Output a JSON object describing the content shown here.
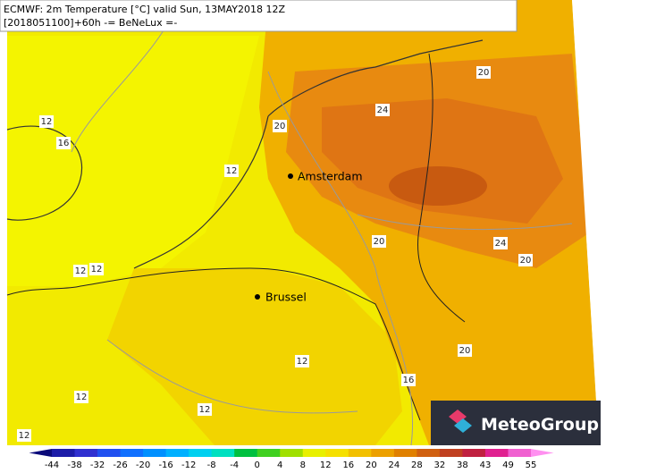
{
  "header": {
    "line1": "ECMWF: 2m Temperature [°C] valid Sun, 13MAY2018 12Z",
    "line2": "[2018051100]+60h -= BeNeLux =-"
  },
  "cities": [
    "Amsterdam",
    "Brussel"
  ],
  "contour_labels": [
    20,
    24,
    20,
    12,
    16,
    12,
    20,
    24,
    20,
    12,
    12,
    20,
    12,
    16,
    12,
    12,
    12
  ],
  "colorbar": {
    "ticks": [
      -44,
      -38,
      -32,
      -26,
      -20,
      -16,
      -12,
      -8,
      -4,
      0,
      4,
      8,
      12,
      16,
      20,
      24,
      28,
      32,
      38,
      43,
      49,
      55
    ],
    "colors": [
      "#0a0a7a",
      "#1c1ca8",
      "#3030d0",
      "#2050f0",
      "#1070ff",
      "#0090ff",
      "#00b0ff",
      "#00d0f0",
      "#00e0c0",
      "#00c040",
      "#40d020",
      "#a0e000",
      "#e8f000",
      "#f5e000",
      "#f2c000",
      "#eca000",
      "#e08000",
      "#d06010",
      "#c04020",
      "#c02040",
      "#e02090",
      "#f060d0",
      "#ff90f0"
    ]
  },
  "logo": "MeteoGroup"
}
